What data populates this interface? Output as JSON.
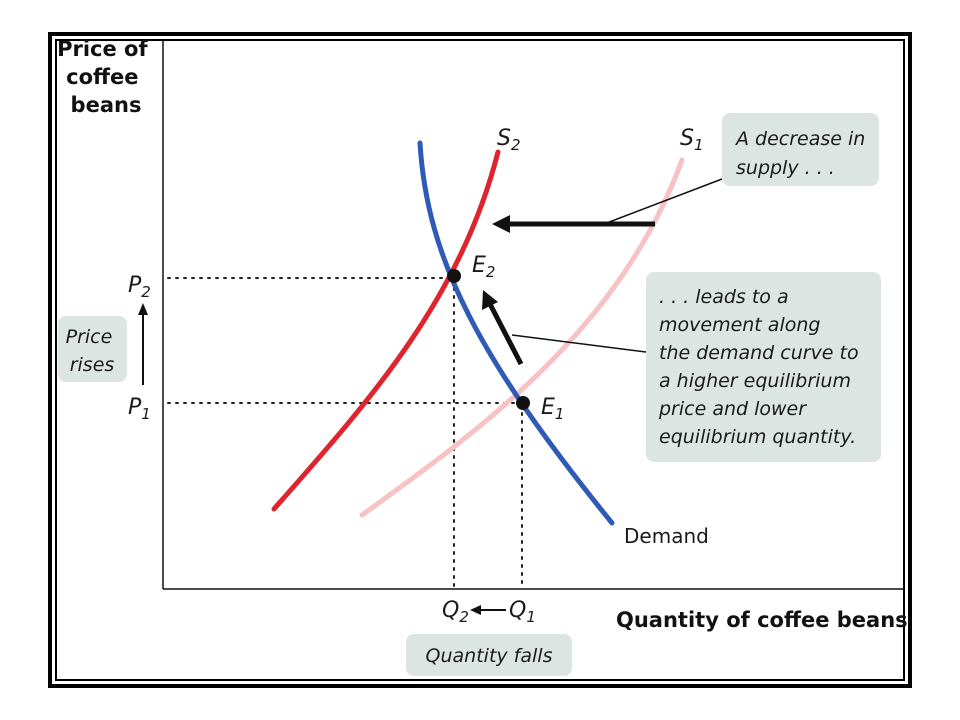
{
  "figure": {
    "y_axis_title": [
      "Price of",
      "coffee",
      "beans"
    ],
    "x_axis_title": "Quantity of coffee beans",
    "supply_original_label": "S",
    "supply_original_sub": "1",
    "supply_new_label": "S",
    "supply_new_sub": "2",
    "demand_label": "Demand",
    "eq_old_label": "E",
    "eq_old_sub": "1",
    "eq_new_label": "E",
    "eq_new_sub": "2",
    "price_high_label": "P",
    "price_high_sub": "2",
    "price_low_label": "P",
    "price_low_sub": "1",
    "qty_new_label": "Q",
    "qty_new_sub": "2",
    "qty_old_label": "Q",
    "qty_old_sub": "1",
    "price_rises": [
      "Price",
      "rises"
    ],
    "quantity_falls": "Quantity falls",
    "callout_supply": [
      "A decrease in",
      "supply . . ."
    ],
    "callout_movement": [
      ". . . leads to a",
      "movement along",
      "the demand curve to",
      "a higher equilibrium",
      "price and lower",
      "equilibrium quantity."
    ]
  },
  "colors": {
    "supply_new": "#e0242e",
    "supply_old": "#f7c2c4",
    "demand": "#2f5bb7",
    "callout_fill": "#dde5e2",
    "axis": "#111111"
  }
}
